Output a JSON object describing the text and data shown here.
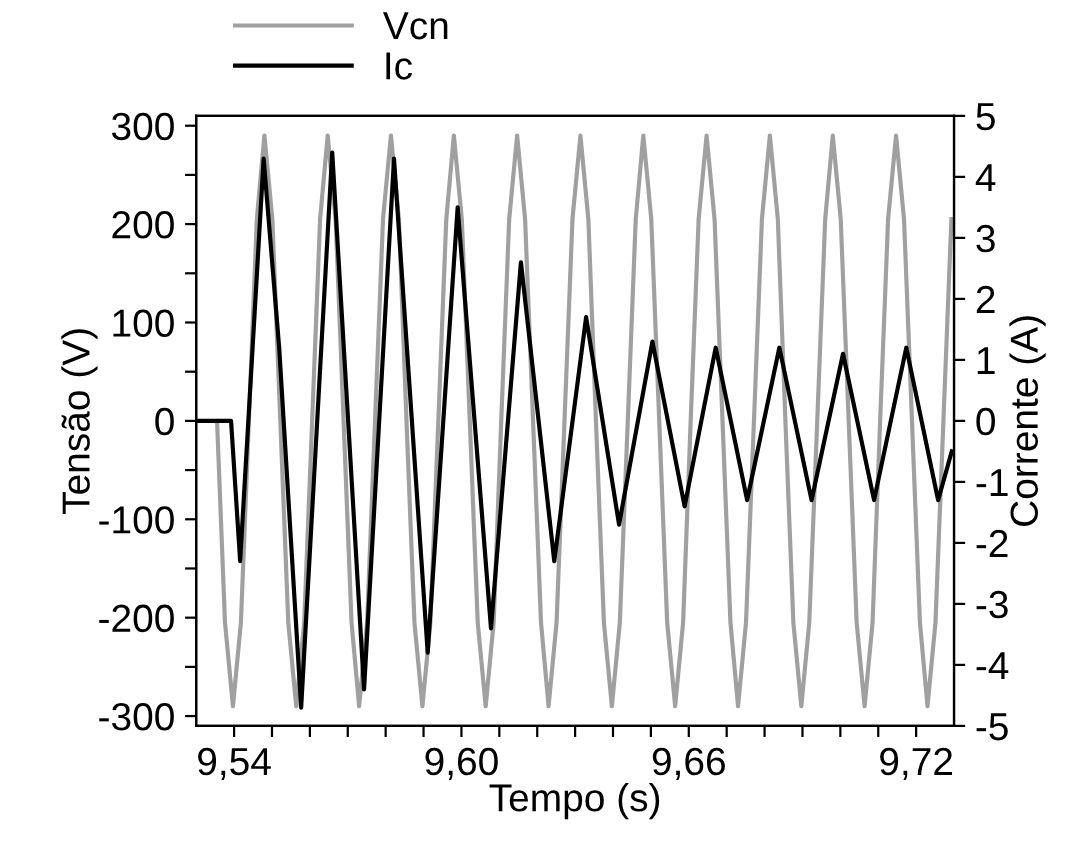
{
  "chart_data": {
    "type": "line",
    "xlabel": "Tempo (s)",
    "ylabel": "Tensão (V)",
    "y2label": "Corrente (A)",
    "xlim": [
      9.53,
      9.73
    ],
    "xticks": [
      {
        "value": 9.54,
        "label": "9,54"
      },
      {
        "value": 9.55,
        "label": null
      },
      {
        "value": 9.56,
        "label": null
      },
      {
        "value": 9.57,
        "label": null
      },
      {
        "value": 9.58,
        "label": null
      },
      {
        "value": 9.59,
        "label": null
      },
      {
        "value": 9.6,
        "label": "9,60"
      },
      {
        "value": 9.61,
        "label": null
      },
      {
        "value": 9.62,
        "label": null
      },
      {
        "value": 9.63,
        "label": null
      },
      {
        "value": 9.64,
        "label": null
      },
      {
        "value": 9.65,
        "label": null
      },
      {
        "value": 9.66,
        "label": "9,66"
      },
      {
        "value": 9.67,
        "label": null
      },
      {
        "value": 9.68,
        "label": null
      },
      {
        "value": 9.69,
        "label": null
      },
      {
        "value": 9.7,
        "label": null
      },
      {
        "value": 9.71,
        "label": null
      },
      {
        "value": 9.72,
        "label": "9,72"
      }
    ],
    "ylim": [
      -310,
      310
    ],
    "yticks": [
      -300,
      {
        "value": -250,
        "label": null
      },
      -200,
      {
        "value": -150,
        "label": null
      },
      -100,
      {
        "value": -50,
        "label": null
      },
      0,
      {
        "value": 50,
        "label": null
      },
      100,
      {
        "value": 150,
        "label": null
      },
      200,
      {
        "value": 250,
        "label": null
      },
      300
    ],
    "y2lim": [
      -5,
      5
    ],
    "y2ticks": [
      -5,
      -4,
      -3,
      -2,
      -1,
      0,
      1,
      2,
      3,
      4,
      5
    ],
    "legend": "top left",
    "grid": false,
    "marker": "none",
    "line_style": "solid",
    "series": [
      {
        "name": "Vcn",
        "color": "#a0a0a0",
        "axis": "y",
        "x": [
          9.5355,
          9.5376,
          9.5397,
          9.5418,
          9.5439,
          9.546,
          9.548,
          9.5501,
          9.5522,
          9.5543,
          9.5564,
          9.5585,
          9.5606,
          9.5627,
          9.5647,
          9.5668,
          9.5689,
          9.571,
          9.573,
          9.5751,
          9.5772,
          9.5793,
          9.5814,
          9.5835,
          9.5855,
          9.5876,
          9.5897,
          9.5918,
          9.5939,
          9.596,
          9.598,
          9.6001,
          9.6022,
          9.6043,
          9.6064,
          9.6085,
          9.6105,
          9.6126,
          9.6147,
          9.6168,
          9.6189,
          9.621,
          9.623,
          9.6251,
          9.6272,
          9.6293,
          9.6314,
          9.6335,
          9.6355,
          9.6376,
          9.6397,
          9.6418,
          9.6439,
          9.646,
          9.648,
          9.6501,
          9.6522,
          9.6543,
          9.6564,
          9.6585,
          9.6605,
          9.6626,
          9.6647,
          9.6668,
          9.6689,
          9.671,
          9.673,
          9.6751,
          9.6772,
          9.6793,
          9.6814,
          9.6835,
          9.6855,
          9.6876,
          9.6897,
          9.6918,
          9.6939,
          9.696,
          9.698,
          9.7001,
          9.7022,
          9.7043,
          9.7064,
          9.7085,
          9.7105,
          9.7126,
          9.7147,
          9.7168,
          9.7189,
          9.721,
          9.723,
          9.7251,
          9.7272,
          9.7293
        ],
        "values": [
          0,
          -205,
          -290,
          -205,
          0,
          205,
          290,
          205,
          0,
          -205,
          -290,
          -205,
          0,
          205,
          290,
          205,
          0,
          -205,
          -290,
          -205,
          0,
          205,
          290,
          205,
          0,
          -205,
          -290,
          -205,
          0,
          205,
          290,
          205,
          0,
          -205,
          -290,
          -205,
          0,
          205,
          290,
          205,
          0,
          -205,
          -290,
          -205,
          0,
          205,
          290,
          205,
          0,
          -205,
          -290,
          -205,
          0,
          205,
          290,
          205,
          0,
          -205,
          -290,
          -205,
          0,
          205,
          290,
          205,
          0,
          -205,
          -290,
          -205,
          0,
          205,
          290,
          205,
          0,
          -205,
          -290,
          -205,
          0,
          205,
          290,
          205,
          0,
          -205,
          -290,
          -205,
          0,
          205,
          290,
          205,
          0,
          -205,
          -290,
          -205,
          0,
          205
        ]
      },
      {
        "name": "Ic",
        "color": "#000000",
        "axis": "y2",
        "x": [
          9.53,
          9.5392,
          9.5416,
          9.5478,
          9.5519,
          9.5577,
          9.5659,
          9.5743,
          9.5822,
          9.5911,
          9.599,
          9.6078,
          9.6157,
          9.6245,
          9.6329,
          9.6416,
          9.6504,
          9.6589,
          9.6671,
          9.6754,
          9.6839,
          9.6924,
          9.7007,
          9.7089,
          9.7174,
          9.7258,
          9.7294
        ],
        "values": [
          0,
          0,
          -2.3,
          4.3,
          1.2,
          -4.7,
          4.4,
          -4.4,
          4.3,
          -3.8,
          3.5,
          -3.4,
          2.6,
          -2.3,
          1.7,
          -1.7,
          1.3,
          -1.4,
          1.2,
          -1.3,
          1.2,
          -1.3,
          1.1,
          -1.3,
          1.2,
          -1.3,
          -0.5
        ]
      }
    ]
  }
}
